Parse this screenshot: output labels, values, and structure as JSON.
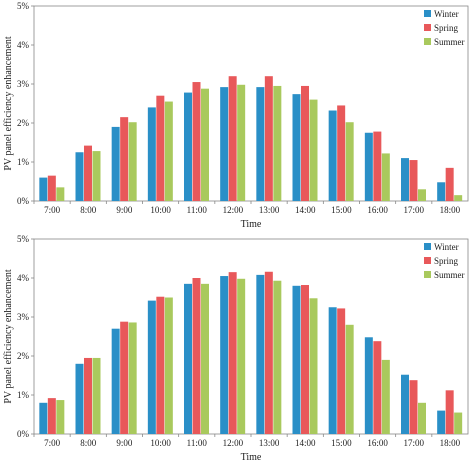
{
  "colors": {
    "Winter": "#2a8fc7",
    "Spring": "#e8585a",
    "Summer": "#a9c95d"
  },
  "chart_data": [
    {
      "type": "bar",
      "categories": [
        "7:00",
        "8:00",
        "9:00",
        "10:00",
        "11:00",
        "12:00",
        "13:00",
        "14:00",
        "15:00",
        "16:00",
        "17:00",
        "18:00"
      ],
      "series": [
        {
          "name": "Winter",
          "values": [
            0.6,
            1.25,
            1.9,
            2.4,
            2.78,
            2.92,
            2.92,
            2.74,
            2.32,
            1.75,
            1.1,
            0.48
          ]
        },
        {
          "name": "Spring",
          "values": [
            0.65,
            1.42,
            2.15,
            2.7,
            3.05,
            3.2,
            3.2,
            2.95,
            2.45,
            1.78,
            1.05,
            0.85
          ]
        },
        {
          "name": "Summer",
          "values": [
            0.35,
            1.28,
            2.02,
            2.55,
            2.88,
            2.98,
            2.95,
            2.6,
            2.02,
            1.22,
            0.3,
            0.15
          ]
        }
      ],
      "yticks": [
        "0%",
        "1%",
        "2%",
        "3%",
        "4%",
        "5%"
      ],
      "ylim": [
        0,
        5
      ],
      "xlabel": "Time",
      "ylabel": "PV panel efficiency enhancement",
      "legend_position": "top-right",
      "grid": false
    },
    {
      "type": "bar",
      "categories": [
        "7:00",
        "8:00",
        "9:00",
        "10:00",
        "11:00",
        "12:00",
        "13:00",
        "14:00",
        "15:00",
        "16:00",
        "17:00",
        "18:00"
      ],
      "series": [
        {
          "name": "Winter",
          "values": [
            0.8,
            1.8,
            2.7,
            3.42,
            3.85,
            4.05,
            4.08,
            3.8,
            3.25,
            2.48,
            1.52,
            0.6
          ]
        },
        {
          "name": "Spring",
          "values": [
            0.92,
            1.95,
            2.88,
            3.52,
            4.0,
            4.15,
            4.16,
            3.82,
            3.22,
            2.38,
            1.38,
            1.12
          ]
        },
        {
          "name": "Summer",
          "values": [
            0.87,
            1.95,
            2.86,
            3.5,
            3.85,
            3.98,
            3.93,
            3.48,
            2.8,
            1.9,
            0.8,
            0.55
          ]
        }
      ],
      "yticks": [
        "0%",
        "1%",
        "2%",
        "3%",
        "4%",
        "5%"
      ],
      "ylim": [
        0,
        5
      ],
      "xlabel": "Time",
      "ylabel": "PV panel efficiency enhancement",
      "legend_position": "top-right",
      "grid": false
    }
  ]
}
